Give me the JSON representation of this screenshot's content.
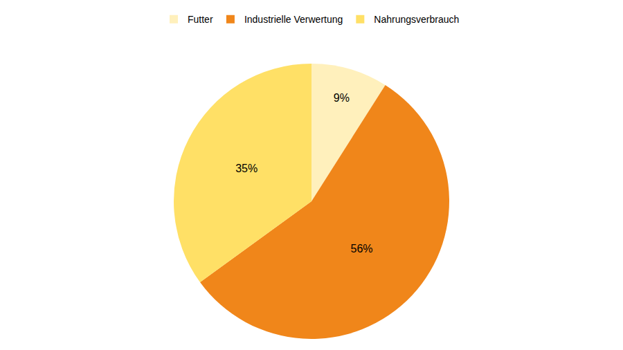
{
  "chart_data": {
    "type": "pie",
    "categories": [
      "Futter",
      "Industrielle Verwertung",
      "Nahrungsverbrauch"
    ],
    "values": [
      9,
      56,
      35
    ],
    "value_labels": [
      "9%",
      "56%",
      "35%"
    ],
    "colors": [
      "#fff0bc",
      "#f0861a",
      "#ffe066"
    ],
    "data_labels": true,
    "legend": "top"
  }
}
